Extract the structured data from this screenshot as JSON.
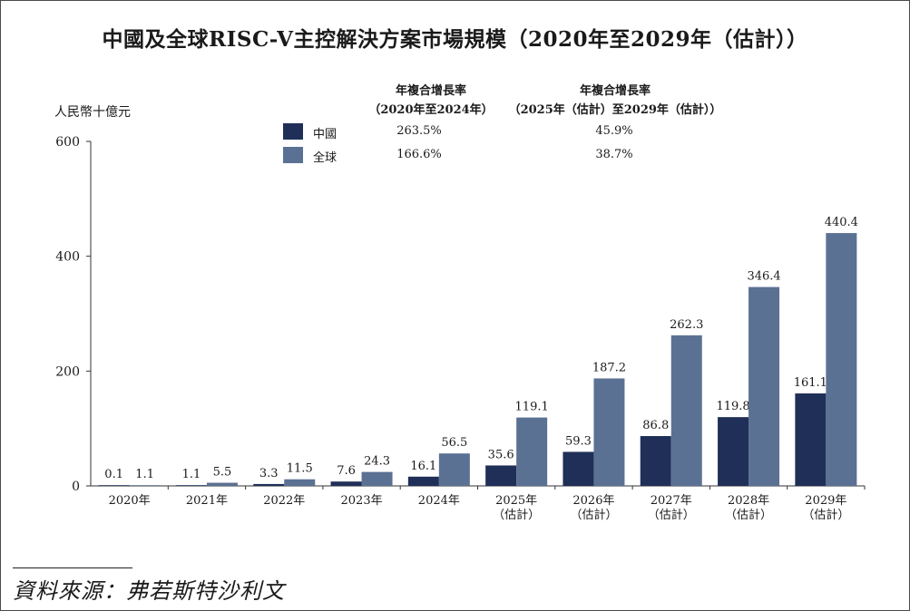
{
  "title": "中國及全球RISC-V主控解決方案市場規模（2020年至2029年（估計））",
  "source": "資料來源：弗若斯特沙利文",
  "colors": {
    "china": "#1f2f57",
    "global": "#5b7193",
    "axis": "#333333"
  },
  "legend": {
    "cagr_header_1": "年複合增長率",
    "cagr_header_1_period": "（2020年至2024年）",
    "cagr_header_2": "年複合增長率",
    "cagr_header_2_period": "（2025年（估計）至2029年（估計））",
    "items": [
      {
        "label": "中國",
        "cagr1": "263.5%",
        "cagr2": "45.9%"
      },
      {
        "label": "全球",
        "cagr1": "166.6%",
        "cagr2": "38.7%"
      }
    ]
  },
  "chart_data": {
    "type": "bar",
    "title": "中國及全球RISC-V主控解決方案市場規模（2020年至2029年（估計））",
    "ylabel": "人民幣十億元",
    "ylim": [
      0,
      600
    ],
    "yticks": [
      0,
      200,
      400,
      600
    ],
    "grid": false,
    "legend_position": "top",
    "categories": [
      [
        "2020年"
      ],
      [
        "2021年"
      ],
      [
        "2022年"
      ],
      [
        "2023年"
      ],
      [
        "2024年"
      ],
      [
        "2025年",
        "（估計）"
      ],
      [
        "2026年",
        "（估計）"
      ],
      [
        "2027年",
        "（估計）"
      ],
      [
        "2028年",
        "（估計）"
      ],
      [
        "2029年",
        "（估計）"
      ]
    ],
    "series": [
      {
        "name": "中國",
        "values": [
          0.1,
          1.1,
          3.3,
          7.6,
          16.1,
          35.6,
          59.3,
          86.8,
          119.8,
          161.1
        ]
      },
      {
        "name": "全球",
        "values": [
          1.1,
          5.5,
          11.5,
          24.3,
          56.5,
          119.1,
          187.2,
          262.3,
          346.4,
          440.4
        ]
      }
    ]
  }
}
